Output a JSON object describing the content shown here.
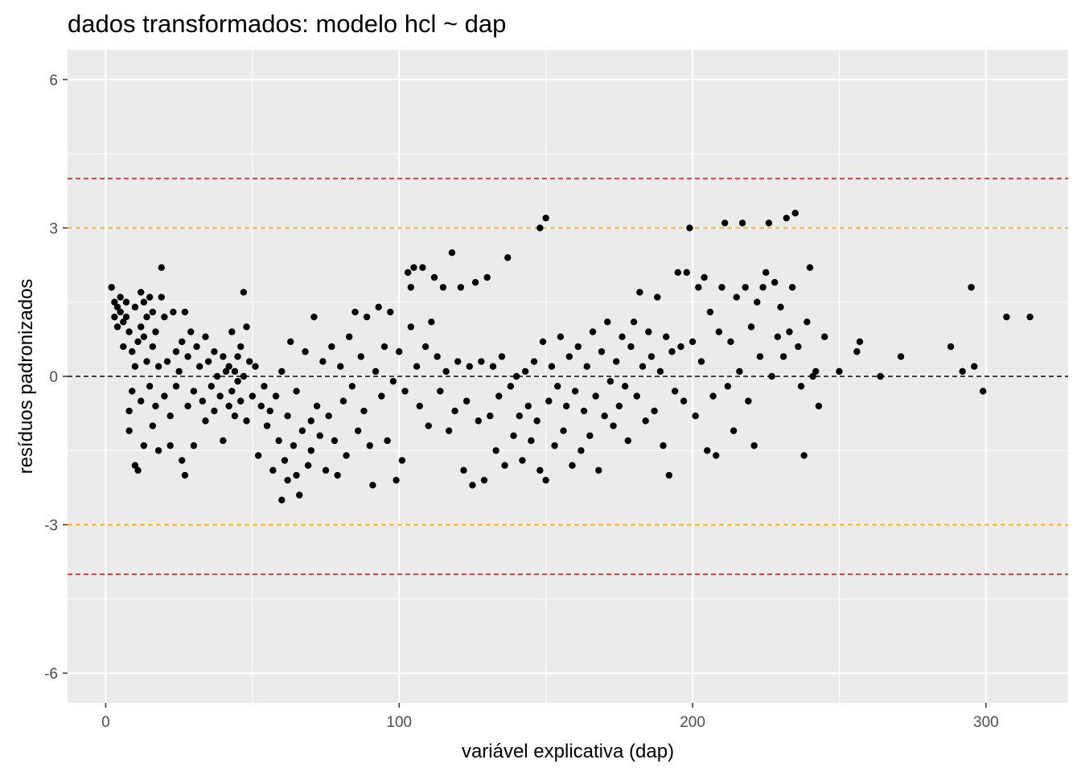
{
  "chart_data": {
    "type": "scatter",
    "title": "dados transformados: modelo hcl ~ dap",
    "xlabel": "variável explicativa (dap)",
    "ylabel": "resíduos padronizados",
    "xlim": [
      -13,
      328
    ],
    "ylim": [
      -6.6,
      6.6
    ],
    "x_ticks": [
      0,
      100,
      200,
      300
    ],
    "y_ticks": [
      -6,
      -3,
      0,
      3,
      6
    ],
    "x_tick_labels": [
      "0",
      "100",
      "200",
      "300"
    ],
    "y_tick_labels": [
      "-6",
      "-3",
      "0",
      "3",
      "6"
    ],
    "grid": true,
    "background": "#ebebeb",
    "point_color": "#000000",
    "reference_lines": [
      {
        "y": 4,
        "color": "#e31a1c",
        "style": "dashed"
      },
      {
        "y": 3,
        "color": "#ffa500",
        "style": "dashed"
      },
      {
        "y": 0,
        "color": "#000000",
        "style": "dashed"
      },
      {
        "y": -3,
        "color": "#ffa500",
        "style": "dashed"
      },
      {
        "y": -4,
        "color": "#e31a1c",
        "style": "dashed"
      }
    ],
    "points": [
      [
        2,
        1.8
      ],
      [
        3,
        1.5
      ],
      [
        3,
        1.2
      ],
      [
        4,
        1.4
      ],
      [
        4,
        1.0
      ],
      [
        5,
        1.6
      ],
      [
        5,
        1.3
      ],
      [
        6,
        1.1
      ],
      [
        6,
        0.6
      ],
      [
        7,
        1.5
      ],
      [
        7,
        1.2
      ],
      [
        8,
        0.9
      ],
      [
        8,
        -0.7
      ],
      [
        8,
        -1.1
      ],
      [
        9,
        0.5
      ],
      [
        9,
        -0.3
      ],
      [
        10,
        1.4
      ],
      [
        10,
        0.2
      ],
      [
        10,
        -1.8
      ],
      [
        11,
        -1.9
      ],
      [
        11,
        0.7
      ],
      [
        12,
        1.7
      ],
      [
        12,
        1.0
      ],
      [
        12,
        -0.5
      ],
      [
        13,
        1.5
      ],
      [
        13,
        0.8
      ],
      [
        13,
        -1.4
      ],
      [
        14,
        1.2
      ],
      [
        14,
        0.3
      ],
      [
        15,
        1.6
      ],
      [
        15,
        -0.2
      ],
      [
        16,
        1.3
      ],
      [
        16,
        0.6
      ],
      [
        16,
        -1.0
      ],
      [
        17,
        0.9
      ],
      [
        17,
        -0.6
      ],
      [
        18,
        0.2
      ],
      [
        18,
        -1.5
      ],
      [
        19,
        2.2
      ],
      [
        19,
        1.6
      ],
      [
        20,
        1.2
      ],
      [
        20,
        -0.4
      ],
      [
        21,
        0.3
      ],
      [
        22,
        -0.8
      ],
      [
        22,
        -1.4
      ],
      [
        23,
        1.3
      ],
      [
        24,
        0.5
      ],
      [
        24,
        -0.2
      ],
      [
        25,
        0.1
      ],
      [
        26,
        -1.7
      ],
      [
        26,
        0.7
      ],
      [
        27,
        -2.0
      ],
      [
        27,
        1.3
      ],
      [
        28,
        0.4
      ],
      [
        28,
        -0.6
      ],
      [
        29,
        0.9
      ],
      [
        30,
        -0.3
      ],
      [
        30,
        -1.4
      ],
      [
        31,
        0.6
      ],
      [
        32,
        0.2
      ],
      [
        33,
        -0.5
      ],
      [
        34,
        0.8
      ],
      [
        34,
        -0.9
      ],
      [
        35,
        0.3
      ],
      [
        36,
        -0.2
      ],
      [
        37,
        0.5
      ],
      [
        37,
        -0.7
      ],
      [
        38,
        0.0
      ],
      [
        39,
        -0.4
      ],
      [
        40,
        0.4
      ],
      [
        40,
        -1.3
      ],
      [
        41,
        0.1
      ],
      [
        42,
        -0.6
      ],
      [
        42,
        0.2
      ],
      [
        43,
        0.9
      ],
      [
        43,
        -0.3
      ],
      [
        44,
        0.1
      ],
      [
        44,
        -0.8
      ],
      [
        45,
        0.4
      ],
      [
        45,
        -0.1
      ],
      [
        46,
        0.6
      ],
      [
        46,
        -0.5
      ],
      [
        47,
        1.7
      ],
      [
        47,
        0.0
      ],
      [
        48,
        1.0
      ],
      [
        48,
        -0.9
      ],
      [
        49,
        0.3
      ],
      [
        50,
        -0.4
      ],
      [
        51,
        0.2
      ],
      [
        52,
        -1.6
      ],
      [
        53,
        -0.6
      ],
      [
        54,
        -0.2
      ],
      [
        55,
        -1.0
      ],
      [
        56,
        -0.7
      ],
      [
        57,
        -1.9
      ],
      [
        58,
        -0.4
      ],
      [
        59,
        -1.3
      ],
      [
        60,
        -2.5
      ],
      [
        60,
        0.1
      ],
      [
        61,
        -1.7
      ],
      [
        62,
        -2.1
      ],
      [
        62,
        -0.8
      ],
      [
        63,
        0.7
      ],
      [
        64,
        -1.4
      ],
      [
        65,
        -2.0
      ],
      [
        65,
        -0.3
      ],
      [
        66,
        -2.4
      ],
      [
        67,
        -1.1
      ],
      [
        68,
        0.5
      ],
      [
        69,
        -1.8
      ],
      [
        70,
        -0.9
      ],
      [
        70,
        -1.5
      ],
      [
        71,
        1.2
      ],
      [
        72,
        -0.6
      ],
      [
        73,
        -1.2
      ],
      [
        74,
        0.3
      ],
      [
        75,
        -1.9
      ],
      [
        76,
        -0.8
      ],
      [
        77,
        0.6
      ],
      [
        78,
        -1.3
      ],
      [
        79,
        -2.0
      ],
      [
        80,
        0.2
      ],
      [
        81,
        -0.5
      ],
      [
        82,
        -1.6
      ],
      [
        83,
        0.8
      ],
      [
        84,
        -0.2
      ],
      [
        85,
        1.3
      ],
      [
        86,
        -1.1
      ],
      [
        87,
        0.4
      ],
      [
        88,
        -0.7
      ],
      [
        89,
        1.2
      ],
      [
        90,
        -1.4
      ],
      [
        91,
        -2.2
      ],
      [
        92,
        0.1
      ],
      [
        93,
        1.4
      ],
      [
        94,
        -0.4
      ],
      [
        95,
        0.6
      ],
      [
        96,
        -1.3
      ],
      [
        97,
        1.3
      ],
      [
        98,
        -0.1
      ],
      [
        99,
        -2.1
      ],
      [
        100,
        0.5
      ],
      [
        101,
        -1.7
      ],
      [
        102,
        -0.3
      ],
      [
        103,
        2.1
      ],
      [
        104,
        1.0
      ],
      [
        104,
        1.8
      ],
      [
        105,
        2.2
      ],
      [
        106,
        0.2
      ],
      [
        107,
        -0.6
      ],
      [
        108,
        2.2
      ],
      [
        109,
        0.6
      ],
      [
        110,
        -1.0
      ],
      [
        111,
        1.1
      ],
      [
        112,
        2.0
      ],
      [
        113,
        0.4
      ],
      [
        114,
        -0.3
      ],
      [
        115,
        1.8
      ],
      [
        116,
        0.1
      ],
      [
        117,
        -1.1
      ],
      [
        118,
        2.5
      ],
      [
        119,
        -0.7
      ],
      [
        120,
        0.3
      ],
      [
        121,
        1.8
      ],
      [
        122,
        -1.9
      ],
      [
        123,
        -0.5
      ],
      [
        124,
        0.2
      ],
      [
        125,
        -2.2
      ],
      [
        126,
        1.9
      ],
      [
        127,
        -0.9
      ],
      [
        128,
        0.3
      ],
      [
        129,
        -2.1
      ],
      [
        130,
        2.0
      ],
      [
        131,
        -0.8
      ],
      [
        132,
        0.2
      ],
      [
        133,
        -1.5
      ],
      [
        134,
        -0.4
      ],
      [
        135,
        0.4
      ],
      [
        136,
        -1.8
      ],
      [
        137,
        2.4
      ],
      [
        138,
        -0.2
      ],
      [
        139,
        -1.2
      ],
      [
        140,
        0.0
      ],
      [
        141,
        -0.8
      ],
      [
        142,
        -1.7
      ],
      [
        143,
        0.1
      ],
      [
        144,
        -0.6
      ],
      [
        145,
        -1.3
      ],
      [
        146,
        0.3
      ],
      [
        147,
        -0.9
      ],
      [
        148,
        3.0
      ],
      [
        148,
        -1.9
      ],
      [
        149,
        0.7
      ],
      [
        150,
        3.2
      ],
      [
        150,
        -2.1
      ],
      [
        151,
        -0.5
      ],
      [
        152,
        0.2
      ],
      [
        153,
        -1.4
      ],
      [
        154,
        -0.2
      ],
      [
        155,
        0.8
      ],
      [
        156,
        -1.1
      ],
      [
        157,
        -0.6
      ],
      [
        158,
        0.4
      ],
      [
        159,
        -1.8
      ],
      [
        160,
        -0.3
      ],
      [
        161,
        0.6
      ],
      [
        162,
        -1.5
      ],
      [
        163,
        -0.7
      ],
      [
        164,
        0.2
      ],
      [
        165,
        -1.2
      ],
      [
        166,
        0.9
      ],
      [
        167,
        -0.4
      ],
      [
        168,
        -1.9
      ],
      [
        169,
        0.5
      ],
      [
        170,
        -0.8
      ],
      [
        171,
        1.1
      ],
      [
        172,
        -0.1
      ],
      [
        173,
        -1.0
      ],
      [
        174,
        0.3
      ],
      [
        175,
        -0.6
      ],
      [
        176,
        0.8
      ],
      [
        177,
        -0.2
      ],
      [
        178,
        -1.3
      ],
      [
        179,
        0.6
      ],
      [
        180,
        1.1
      ],
      [
        181,
        -0.4
      ],
      [
        182,
        1.7
      ],
      [
        183,
        0.2
      ],
      [
        184,
        -0.9
      ],
      [
        185,
        0.9
      ],
      [
        186,
        0.4
      ],
      [
        187,
        -0.7
      ],
      [
        188,
        1.6
      ],
      [
        189,
        0.1
      ],
      [
        190,
        -1.4
      ],
      [
        191,
        0.8
      ],
      [
        192,
        -2.0
      ],
      [
        193,
        0.5
      ],
      [
        194,
        -0.3
      ],
      [
        195,
        2.1
      ],
      [
        196,
        0.6
      ],
      [
        197,
        -0.5
      ],
      [
        198,
        2.1
      ],
      [
        199,
        3.0
      ],
      [
        200,
        0.7
      ],
      [
        201,
        -0.8
      ],
      [
        202,
        1.8
      ],
      [
        203,
        0.3
      ],
      [
        204,
        2.0
      ],
      [
        205,
        -1.5
      ],
      [
        206,
        1.3
      ],
      [
        207,
        -0.4
      ],
      [
        208,
        -1.6
      ],
      [
        209,
        0.9
      ],
      [
        210,
        1.8
      ],
      [
        211,
        3.1
      ],
      [
        212,
        -0.2
      ],
      [
        213,
        0.7
      ],
      [
        214,
        -1.1
      ],
      [
        215,
        1.6
      ],
      [
        216,
        0.1
      ],
      [
        217,
        3.1
      ],
      [
        218,
        1.8
      ],
      [
        219,
        -0.5
      ],
      [
        220,
        1.0
      ],
      [
        221,
        -1.4
      ],
      [
        222,
        1.5
      ],
      [
        223,
        0.4
      ],
      [
        224,
        1.8
      ],
      [
        225,
        2.1
      ],
      [
        226,
        3.1
      ],
      [
        227,
        0.0
      ],
      [
        228,
        1.9
      ],
      [
        229,
        0.8
      ],
      [
        230,
        1.4
      ],
      [
        231,
        0.4
      ],
      [
        232,
        3.2
      ],
      [
        233,
        0.9
      ],
      [
        234,
        1.8
      ],
      [
        235,
        3.3
      ],
      [
        236,
        0.6
      ],
      [
        237,
        -0.2
      ],
      [
        238,
        -1.6
      ],
      [
        239,
        1.1
      ],
      [
        240,
        2.2
      ],
      [
        241,
        0.0
      ],
      [
        242,
        0.1
      ],
      [
        243,
        -0.6
      ],
      [
        245,
        0.8
      ],
      [
        250,
        0.1
      ],
      [
        256,
        0.5
      ],
      [
        257,
        0.7
      ],
      [
        264,
        0.0
      ],
      [
        271,
        0.4
      ],
      [
        288,
        0.6
      ],
      [
        292,
        0.1
      ],
      [
        295,
        1.8
      ],
      [
        296,
        0.2
      ],
      [
        299,
        -0.3
      ],
      [
        307,
        1.2
      ],
      [
        315,
        1.2
      ]
    ]
  }
}
